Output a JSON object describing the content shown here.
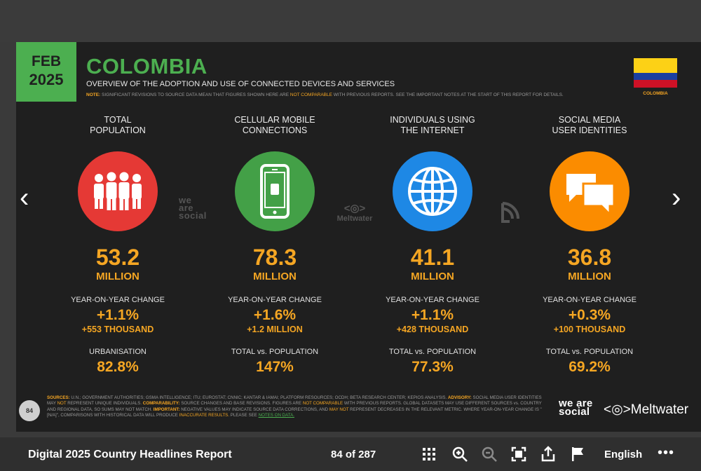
{
  "slide": {
    "date_month": "FEB",
    "date_year": "2025",
    "title": "COLOMBIA",
    "subtitle": "OVERVIEW OF THE ADOPTION AND USE OF CONNECTED DEVICES AND SERVICES",
    "note_label": "NOTE:",
    "note_text_1": "SIGNIFICANT REVISIONS TO SOURCE DATA MEAN THAT FIGURES SHOWN HERE ARE",
    "note_highlight": "NOT COMPARABLE",
    "note_text_2": "WITH PREVIOUS REPORTS. SEE THE IMPORTANT NOTES AT THE START OF THIS REPORT FOR DETAILS.",
    "flag_name": "COLOMBIA",
    "flag_colors": [
      "#fcd116",
      "#1a3fa0",
      "#ce1126"
    ],
    "watermark_weare": "we are social",
    "watermark_meltwater": "Meltwater",
    "page_badge": "84",
    "columns": [
      {
        "label_1": "TOTAL",
        "label_2": "POPULATION",
        "icon": "people-icon",
        "color": "#e53935",
        "value": "53.2",
        "unit": "MILLION",
        "yoy_label": "YEAR-ON-YEAR CHANGE",
        "yoy_pct": "+1.1%",
        "yoy_abs": "+553 THOUSAND",
        "extra_label": "URBANISATION",
        "extra_value": "82.8%"
      },
      {
        "label_1": "CELLULAR MOBILE",
        "label_2": "CONNECTIONS",
        "icon": "mobile-phone-icon",
        "color": "#43a047",
        "value": "78.3",
        "unit": "MILLION",
        "yoy_label": "YEAR-ON-YEAR CHANGE",
        "yoy_pct": "+1.6%",
        "yoy_abs": "+1.2 MILLION",
        "extra_label": "TOTAL vs. POPULATION",
        "extra_value": "147%"
      },
      {
        "label_1": "INDIVIDUALS USING",
        "label_2": "THE INTERNET",
        "icon": "globe-icon",
        "color": "#1e88e5",
        "value": "41.1",
        "unit": "MILLION",
        "yoy_label": "YEAR-ON-YEAR CHANGE",
        "yoy_pct": "+1.1%",
        "yoy_abs": "+428 THOUSAND",
        "extra_label": "TOTAL vs. POPULATION",
        "extra_value": "77.3%"
      },
      {
        "label_1": "SOCIAL MEDIA",
        "label_2": "USER IDENTITIES",
        "icon": "speech-bubbles-icon",
        "color": "#fb8c00",
        "value": "36.8",
        "unit": "MILLION",
        "yoy_label": "YEAR-ON-YEAR CHANGE",
        "yoy_pct": "+0.3%",
        "yoy_abs": "+100 THOUSAND",
        "extra_label": "TOTAL vs. POPULATION",
        "extra_value": "69.2%"
      }
    ],
    "sources": {
      "l1_label": "SOURCES:",
      "l1_text": "U.N.; GOVERNMENT AUTHORITIES; GSMA INTELLIGENCE; ITU; EUROSTAT; CNNIC; KANTAR & IAMAI; PLATFORM RESOURCES; OCDH; BETA RESEARCH CENTER; KEPIOS ANALYSIS.",
      "l1_label2": "ADVISORY:",
      "l1_text2": "SOCIAL",
      "l2_text": "MEDIA USER IDENTITIES MAY",
      "l2_hl": "NOT",
      "l2_text2": "REPRESENT UNIQUE INDIVIDUALS.",
      "l2_label": "COMPARABILITY:",
      "l2_text3": "SOURCE CHANGES AND BASE REVISIONS. FIGURES ARE",
      "l2_hl2": "NOT COMPARABLE",
      "l2_text4": "WITH PREVIOUS REPORTS. GLOBAL DATASETS",
      "l3_text": "MAY USE DIFFERENT SOURCES vs. COUNTRY AND REGIONAL DATA, SO SUMS MAY NOT MATCH.",
      "l3_label": "IMPORTANT:",
      "l3_text2": "NEGATIVE VALUES MAY INDICATE SOURCE DATA CORRECTIONS, AND",
      "l3_hl": "MAY NOT",
      "l3_text3": "REPRESENT",
      "l4_text": "DECREASES IN THE RELEVANT METRIC. WHERE YEAR-ON-YEAR CHANGE IS \"[N/A]\", COMPARISONS WITH HISTORICAL DATA WILL PRODUCE",
      "l4_hl": "INACCURATE RESULTS.",
      "l4_text2": "PLEASE SEE",
      "l4_link": "NOTES ON DATA."
    },
    "logo_weare": "we are social",
    "logo_meltwater": "Meltwater"
  },
  "toolbar": {
    "doc_title": "Digital 2025 Country Headlines Report",
    "page_indicator": "84 of 287",
    "language": "English",
    "more": "•••",
    "icons": [
      "grid-view-icon",
      "zoom-in-icon",
      "zoom-out-icon",
      "fullscreen-icon",
      "share-icon",
      "flag-icon"
    ]
  },
  "nav": {
    "prev": "‹",
    "next": "›"
  }
}
